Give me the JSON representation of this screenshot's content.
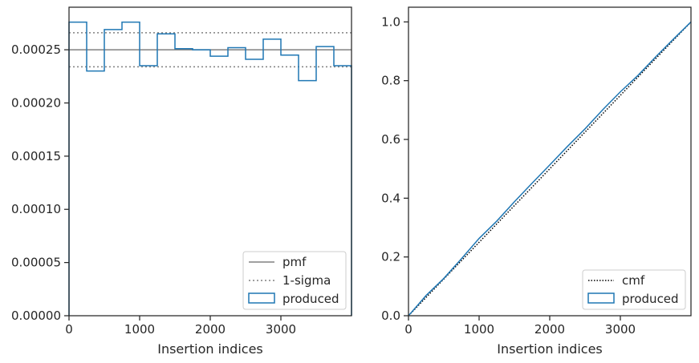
{
  "colors": {
    "produced": "#1f77b4",
    "pmf": "#808080",
    "sigma": "#808080",
    "cmf": "#000000",
    "axes": "#262626"
  },
  "chart_data": [
    {
      "type": "step",
      "xlabel": "Insertion indices",
      "ylabel": "",
      "xlim": [
        0,
        4000
      ],
      "ylim": [
        0,
        0.00029
      ],
      "xticks": [
        "0",
        "1000",
        "2000",
        "3000"
      ],
      "yticks": [
        "0.00000",
        "0.00005",
        "0.00010",
        "0.00015",
        "0.00020",
        "0.00025"
      ],
      "grid": false,
      "legend_position": "bottom-right",
      "legend": [
        "pmf",
        "1-sigma",
        "produced"
      ],
      "pmf": 0.00025,
      "sigma": [
        0.000266,
        0.000234
      ],
      "series": [
        {
          "name": "produced",
          "bin_edges": [
            0,
            250,
            500,
            750,
            1000,
            1250,
            1500,
            1750,
            2000,
            2250,
            2500,
            2750,
            3000,
            3250,
            3500,
            3750,
            4000
          ],
          "values": [
            0.000276,
            0.00023,
            0.000269,
            0.000276,
            0.000235,
            0.000265,
            0.000251,
            0.00025,
            0.000244,
            0.000252,
            0.000241,
            0.00026,
            0.000245,
            0.000221,
            0.000253,
            0.000235
          ]
        }
      ]
    },
    {
      "type": "line",
      "xlabel": "Insertion indices",
      "ylabel": "",
      "xlim": [
        0,
        4000
      ],
      "ylim": [
        0,
        1.05
      ],
      "xticks": [
        "0",
        "1000",
        "2000",
        "3000"
      ],
      "yticks": [
        "0.0",
        "0.2",
        "0.4",
        "0.6",
        "0.8",
        "1.0"
      ],
      "grid": false,
      "legend_position": "bottom-right",
      "legend": [
        "cmf",
        "produced"
      ],
      "series": [
        {
          "name": "cmf",
          "x": [
            0,
            4000
          ],
          "y": [
            0,
            1.0
          ]
        },
        {
          "name": "produced",
          "x": [
            0,
            250,
            500,
            750,
            1000,
            1250,
            1500,
            1750,
            2000,
            2250,
            2500,
            2750,
            3000,
            3250,
            3500,
            3750,
            4000
          ],
          "y": [
            0,
            0.069,
            0.127,
            0.194,
            0.263,
            0.322,
            0.388,
            0.451,
            0.513,
            0.576,
            0.636,
            0.701,
            0.762,
            0.818,
            0.881,
            0.941,
            1.0
          ]
        }
      ]
    }
  ]
}
